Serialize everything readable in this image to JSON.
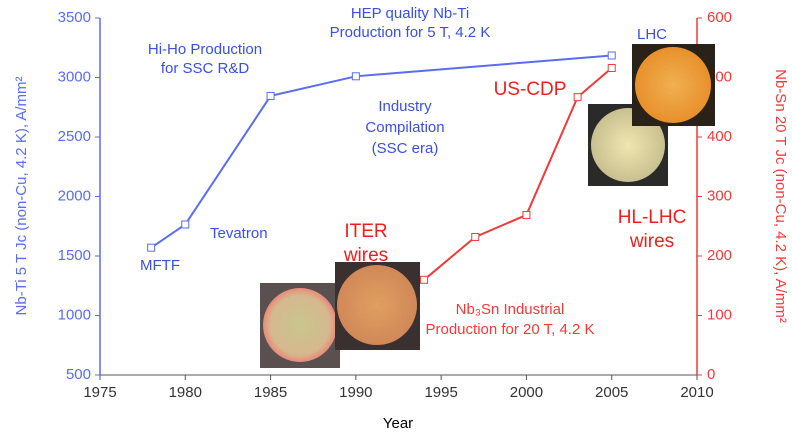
{
  "chart_data": {
    "type": "line",
    "x_label": "Year",
    "y_label": "Nb-Ti 5 T Jc (non-Cu, 4.2 K), A/mm²",
    "y2_label": "Nb-Sn 20 T Jc (non-Cu, 4.2 K), A/mm²",
    "xlim": [
      1975,
      2010
    ],
    "xticks": [
      1975,
      1980,
      1985,
      1990,
      1995,
      2000,
      2005,
      2010
    ],
    "ylim": [
      500,
      3500
    ],
    "yticks": [
      500,
      1000,
      1500,
      2000,
      2500,
      3000,
      3500
    ],
    "y2lim": [
      0,
      600
    ],
    "y2ticks": [
      0,
      100,
      200,
      300,
      400,
      500,
      600
    ],
    "y_color": "#5a6cf0",
    "y2_color": "#f03a3a",
    "series": [
      {
        "color": "#5a6cf0",
        "x": [
          1978,
          1980,
          1985,
          1990,
          2005
        ],
        "values": [
          1570,
          1765,
          2845,
          3010,
          3185
        ]
      },
      {
        "color": "#f03a3a",
        "axis": "y2",
        "x": [
          1994,
          1997,
          2000,
          2003,
          2005
        ],
        "values": [
          160,
          232,
          269,
          467,
          516
        ]
      }
    ],
    "annotations": [
      {
        "lines": [
          "HEP quality Nb-Ti",
          "Production for 5 T, 4.2 K"
        ],
        "color": "#3a4fe0"
      },
      {
        "lines": [
          "Hi-Ho Production",
          "for SSC R&D"
        ],
        "color": "#3a4fe0"
      },
      {
        "lines": [
          "Industry",
          "Compilation",
          "(SSC era)"
        ],
        "color": "#3a4fe0"
      },
      {
        "lines": [
          "Tevatron"
        ],
        "color": "#3a4fe0"
      },
      {
        "lines": [
          "MFTF"
        ],
        "color": "#3a4fe0"
      },
      {
        "lines": [
          "LHC"
        ],
        "color": "#3a4fe0"
      },
      {
        "lines": [
          "US-CDP"
        ],
        "color": "#f01e1e"
      },
      {
        "lines": [
          "ITER",
          "wires"
        ],
        "color": "#f01e1e"
      },
      {
        "lines": [
          "HL-LHC",
          "wires"
        ],
        "color": "#f01e1e"
      },
      {
        "lines": [
          "Nb₃Sn Industrial",
          "Production for 20 T, 4.2 K"
        ],
        "color": "#f03a3a"
      }
    ]
  }
}
